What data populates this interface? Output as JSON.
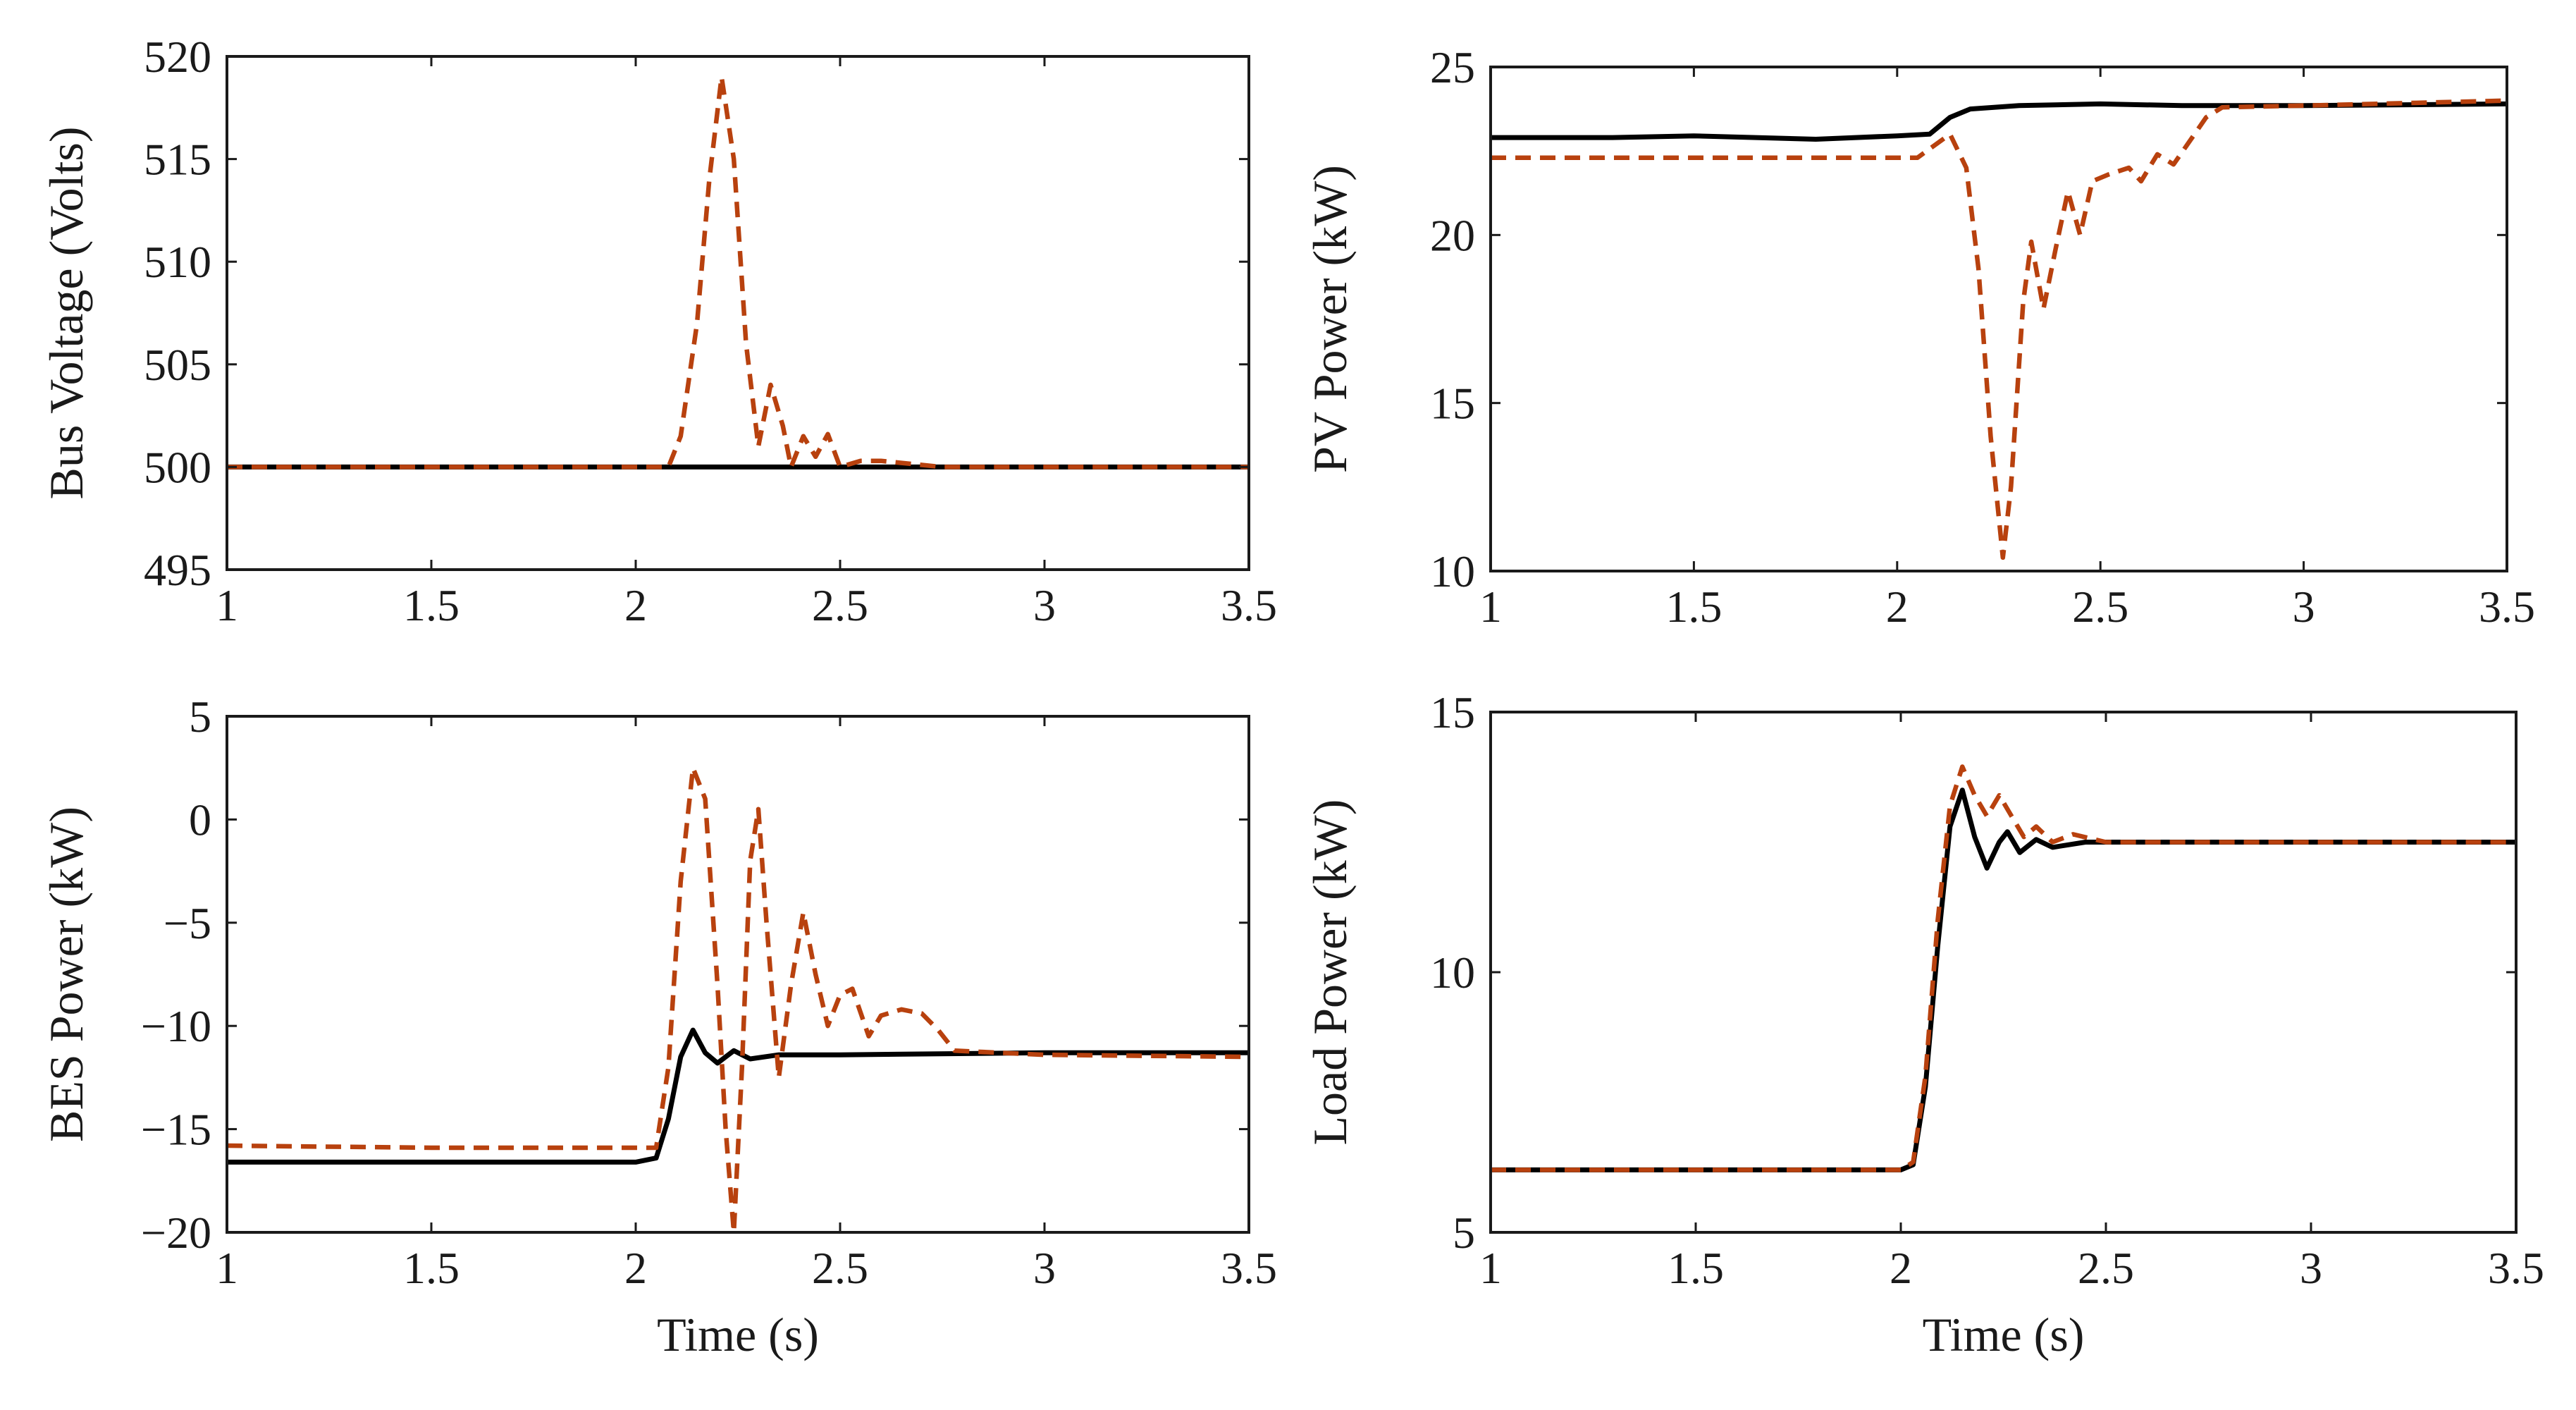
{
  "figure": {
    "panel_count": 4
  },
  "chart_data": [
    {
      "id": "bus-voltage",
      "type": "line",
      "title": "",
      "xlabel": "",
      "ylabel": "Bus Voltage (Volts)",
      "xlim": [
        1,
        3.5
      ],
      "ylim": [
        495,
        520
      ],
      "xticks": [
        1,
        1.5,
        2,
        2.5,
        3,
        3.5
      ],
      "yticks": [
        495,
        500,
        505,
        510,
        515,
        520
      ],
      "series": [
        {
          "name": "solid",
          "style": "solid",
          "color": "#000000",
          "points": [
            [
              1,
              500
            ],
            [
              3.5,
              500
            ]
          ]
        },
        {
          "name": "dashed",
          "style": "dashed",
          "color": "#b8410e",
          "points": [
            [
              1,
              500
            ],
            [
              2.08,
              500
            ],
            [
              2.11,
              501.5
            ],
            [
              2.15,
              507
            ],
            [
              2.18,
              514
            ],
            [
              2.21,
              519
            ],
            [
              2.24,
              515
            ],
            [
              2.27,
              506
            ],
            [
              2.3,
              501
            ],
            [
              2.33,
              504
            ],
            [
              2.36,
              502
            ],
            [
              2.38,
              500
            ],
            [
              2.41,
              501.5
            ],
            [
              2.44,
              500.5
            ],
            [
              2.47,
              501.6
            ],
            [
              2.5,
              500
            ],
            [
              2.55,
              500.3
            ],
            [
              2.6,
              500.3
            ],
            [
              2.65,
              500.2
            ],
            [
              2.7,
              500.1
            ],
            [
              2.75,
              500
            ],
            [
              3.5,
              500
            ]
          ]
        }
      ]
    },
    {
      "id": "pv-power",
      "type": "line",
      "title": "",
      "xlabel": "",
      "ylabel": "PV Power (kW)",
      "xlim": [
        1,
        3.5
      ],
      "ylim": [
        10,
        25
      ],
      "xticks": [
        1,
        1.5,
        2,
        2.5,
        3,
        3.5
      ],
      "yticks": [
        10,
        15,
        20,
        25
      ],
      "series": [
        {
          "name": "solid",
          "style": "solid",
          "color": "#000000",
          "points": [
            [
              1,
              22.9
            ],
            [
              1.3,
              22.9
            ],
            [
              1.5,
              22.95
            ],
            [
              1.8,
              22.85
            ],
            [
              2.0,
              22.95
            ],
            [
              2.08,
              23.0
            ],
            [
              2.13,
              23.5
            ],
            [
              2.18,
              23.75
            ],
            [
              2.3,
              23.85
            ],
            [
              2.5,
              23.9
            ],
            [
              2.7,
              23.85
            ],
            [
              3.0,
              23.85
            ],
            [
              3.5,
              23.9
            ]
          ]
        },
        {
          "name": "dashed",
          "style": "dashed",
          "color": "#b8410e",
          "points": [
            [
              1,
              22.3
            ],
            [
              1.5,
              22.3
            ],
            [
              2.05,
              22.3
            ],
            [
              2.13,
              23.0
            ],
            [
              2.17,
              22.0
            ],
            [
              2.2,
              19.0
            ],
            [
              2.23,
              14.0
            ],
            [
              2.26,
              10.4
            ],
            [
              2.28,
              12.5
            ],
            [
              2.31,
              18.0
            ],
            [
              2.33,
              19.8
            ],
            [
              2.36,
              17.8
            ],
            [
              2.39,
              19.6
            ],
            [
              2.42,
              21.3
            ],
            [
              2.45,
              20.0
            ],
            [
              2.48,
              21.6
            ],
            [
              2.52,
              21.8
            ],
            [
              2.57,
              22.0
            ],
            [
              2.6,
              21.6
            ],
            [
              2.64,
              22.4
            ],
            [
              2.68,
              22.1
            ],
            [
              2.72,
              22.8
            ],
            [
              2.76,
              23.5
            ],
            [
              2.8,
              23.8
            ],
            [
              3.0,
              23.85
            ],
            [
              3.5,
              24.0
            ]
          ]
        }
      ]
    },
    {
      "id": "bes-power",
      "type": "line",
      "title": "",
      "xlabel": "Time (s)",
      "ylabel": "BES Power (kW)",
      "xlim": [
        1,
        3.5
      ],
      "ylim": [
        -20,
        5
      ],
      "xticks": [
        1,
        1.5,
        2,
        2.5,
        3,
        3.5
      ],
      "yticks": [
        -20,
        -15,
        -10,
        -5,
        0,
        5
      ],
      "ytick_labels": [
        "−20",
        "−15",
        "−10",
        "−5",
        "0",
        "5"
      ],
      "series": [
        {
          "name": "solid",
          "style": "solid",
          "color": "#000000",
          "points": [
            [
              1,
              -16.6
            ],
            [
              1.5,
              -16.6
            ],
            [
              2.0,
              -16.6
            ],
            [
              2.05,
              -16.4
            ],
            [
              2.08,
              -14.5
            ],
            [
              2.11,
              -11.5
            ],
            [
              2.14,
              -10.2
            ],
            [
              2.17,
              -11.3
            ],
            [
              2.2,
              -11.8
            ],
            [
              2.24,
              -11.2
            ],
            [
              2.28,
              -11.6
            ],
            [
              2.35,
              -11.4
            ],
            [
              2.5,
              -11.4
            ],
            [
              3.0,
              -11.3
            ],
            [
              3.5,
              -11.3
            ]
          ]
        },
        {
          "name": "dashed",
          "style": "dashed",
          "color": "#b8410e",
          "points": [
            [
              1,
              -15.8
            ],
            [
              1.5,
              -15.9
            ],
            [
              2.05,
              -15.9
            ],
            [
              2.08,
              -12.0
            ],
            [
              2.11,
              -3.0
            ],
            [
              2.14,
              2.5
            ],
            [
              2.17,
              1.0
            ],
            [
              2.2,
              -8.0
            ],
            [
              2.22,
              -15.0
            ],
            [
              2.24,
              -20.0
            ],
            [
              2.26,
              -12.0
            ],
            [
              2.28,
              -2.0
            ],
            [
              2.3,
              0.5
            ],
            [
              2.32,
              -5.0
            ],
            [
              2.35,
              -12.5
            ],
            [
              2.38,
              -8.0
            ],
            [
              2.41,
              -4.5
            ],
            [
              2.44,
              -7.5
            ],
            [
              2.47,
              -10.0
            ],
            [
              2.5,
              -8.5
            ],
            [
              2.53,
              -8.2
            ],
            [
              2.57,
              -10.5
            ],
            [
              2.6,
              -9.5
            ],
            [
              2.65,
              -9.2
            ],
            [
              2.7,
              -9.4
            ],
            [
              2.74,
              -10.2
            ],
            [
              2.78,
              -11.2
            ],
            [
              3.0,
              -11.4
            ],
            [
              3.5,
              -11.5
            ]
          ]
        }
      ]
    },
    {
      "id": "load-power",
      "type": "line",
      "title": "",
      "xlabel": "Time (s)",
      "ylabel": "Load Power (kW)",
      "xlim": [
        1,
        3.5
      ],
      "ylim": [
        5,
        15
      ],
      "xticks": [
        1,
        1.5,
        2,
        2.5,
        3,
        3.5
      ],
      "yticks": [
        5,
        10,
        15
      ],
      "series": [
        {
          "name": "solid",
          "style": "solid",
          "color": "#000000",
          "points": [
            [
              1,
              6.2
            ],
            [
              2.0,
              6.2
            ],
            [
              2.03,
              6.3
            ],
            [
              2.06,
              7.8
            ],
            [
              2.09,
              10.5
            ],
            [
              2.12,
              12.8
            ],
            [
              2.15,
              13.5
            ],
            [
              2.18,
              12.6
            ],
            [
              2.21,
              12.0
            ],
            [
              2.24,
              12.5
            ],
            [
              2.26,
              12.7
            ],
            [
              2.29,
              12.3
            ],
            [
              2.33,
              12.55
            ],
            [
              2.37,
              12.4
            ],
            [
              2.45,
              12.5
            ],
            [
              3.5,
              12.5
            ]
          ]
        },
        {
          "name": "dashed",
          "style": "dashed",
          "color": "#b8410e",
          "points": [
            [
              1,
              6.2
            ],
            [
              2.0,
              6.2
            ],
            [
              2.03,
              6.35
            ],
            [
              2.06,
              8.0
            ],
            [
              2.09,
              11.0
            ],
            [
              2.12,
              13.2
            ],
            [
              2.15,
              13.95
            ],
            [
              2.18,
              13.4
            ],
            [
              2.21,
              13.0
            ],
            [
              2.24,
              13.4
            ],
            [
              2.27,
              13.0
            ],
            [
              2.3,
              12.6
            ],
            [
              2.33,
              12.8
            ],
            [
              2.37,
              12.5
            ],
            [
              2.42,
              12.65
            ],
            [
              2.5,
              12.5
            ],
            [
              3.5,
              12.5
            ]
          ]
        }
      ]
    }
  ]
}
